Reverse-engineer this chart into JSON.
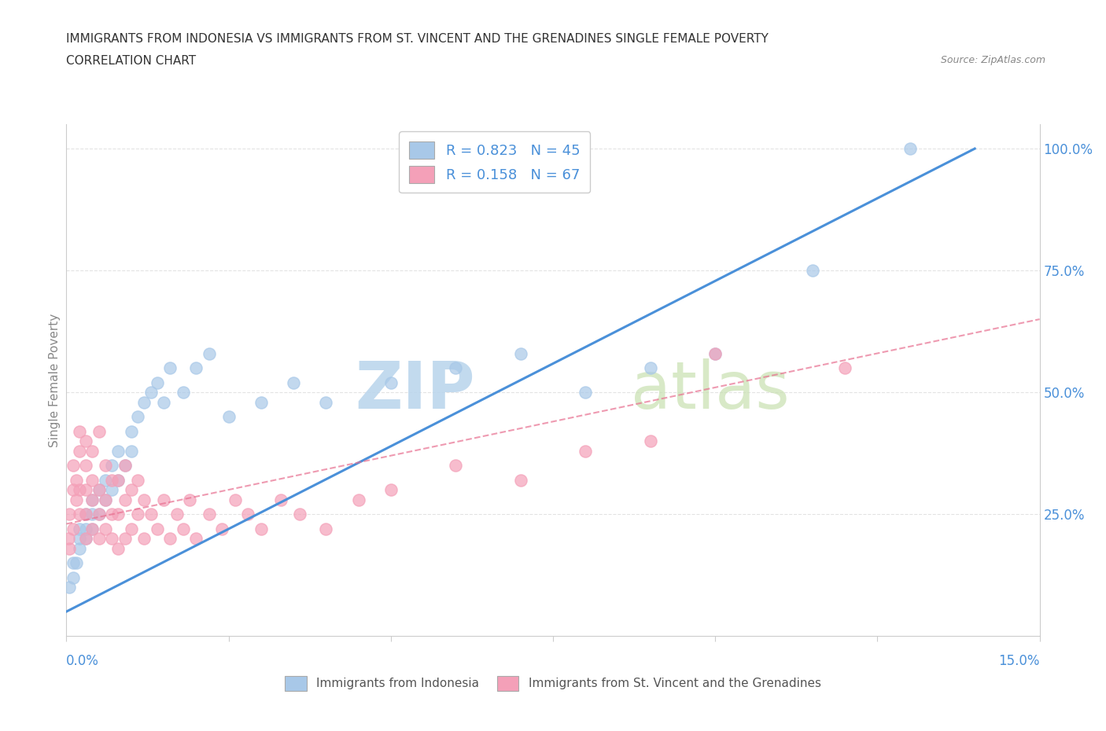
{
  "title_line1": "IMMIGRANTS FROM INDONESIA VS IMMIGRANTS FROM ST. VINCENT AND THE GRENADINES SINGLE FEMALE POVERTY",
  "title_line2": "CORRELATION CHART",
  "source_text": "Source: ZipAtlas.com",
  "ylabel": "Single Female Poverty",
  "xlim": [
    0.0,
    0.15
  ],
  "ylim": [
    0.0,
    1.05
  ],
  "xtick_vals": [
    0.0,
    0.025,
    0.05,
    0.075,
    0.1,
    0.125,
    0.15
  ],
  "ytick_vals": [
    0.25,
    0.5,
    0.75,
    1.0
  ],
  "ytick_labels": [
    "25.0%",
    "50.0%",
    "75.0%",
    "100.0%"
  ],
  "color_blue": "#a8c8e8",
  "color_pink": "#f4a0b8",
  "line_blue": "#4a90d9",
  "line_pink": "#e87090",
  "R_blue": 0.823,
  "N_blue": 45,
  "R_pink": 0.158,
  "N_pink": 67,
  "watermark_zip": "ZIP",
  "watermark_atlas": "atlas",
  "watermark_color": "#c8dff0",
  "legend_label_blue": "Immigrants from Indonesia",
  "legend_label_pink": "Immigrants from St. Vincent and the Grenadines",
  "blue_scatter_x": [
    0.0005,
    0.001,
    0.001,
    0.0015,
    0.002,
    0.002,
    0.002,
    0.003,
    0.003,
    0.003,
    0.004,
    0.004,
    0.004,
    0.005,
    0.005,
    0.006,
    0.006,
    0.007,
    0.007,
    0.008,
    0.008,
    0.009,
    0.01,
    0.01,
    0.011,
    0.012,
    0.013,
    0.014,
    0.015,
    0.016,
    0.018,
    0.02,
    0.022,
    0.025,
    0.03,
    0.035,
    0.04,
    0.05,
    0.06,
    0.07,
    0.08,
    0.09,
    0.1,
    0.115,
    0.13
  ],
  "blue_scatter_y": [
    0.1,
    0.12,
    0.15,
    0.15,
    0.18,
    0.2,
    0.22,
    0.2,
    0.22,
    0.25,
    0.22,
    0.25,
    0.28,
    0.25,
    0.3,
    0.28,
    0.32,
    0.3,
    0.35,
    0.32,
    0.38,
    0.35,
    0.38,
    0.42,
    0.45,
    0.48,
    0.5,
    0.52,
    0.48,
    0.55,
    0.5,
    0.55,
    0.58,
    0.45,
    0.48,
    0.52,
    0.48,
    0.52,
    0.55,
    0.58,
    0.5,
    0.55,
    0.58,
    0.75,
    1.0
  ],
  "pink_scatter_x": [
    0.0003,
    0.0005,
    0.0005,
    0.001,
    0.001,
    0.001,
    0.0015,
    0.0015,
    0.002,
    0.002,
    0.002,
    0.002,
    0.003,
    0.003,
    0.003,
    0.003,
    0.003,
    0.004,
    0.004,
    0.004,
    0.004,
    0.005,
    0.005,
    0.005,
    0.005,
    0.006,
    0.006,
    0.006,
    0.007,
    0.007,
    0.007,
    0.008,
    0.008,
    0.008,
    0.009,
    0.009,
    0.009,
    0.01,
    0.01,
    0.011,
    0.011,
    0.012,
    0.012,
    0.013,
    0.014,
    0.015,
    0.016,
    0.017,
    0.018,
    0.019,
    0.02,
    0.022,
    0.024,
    0.026,
    0.028,
    0.03,
    0.033,
    0.036,
    0.04,
    0.045,
    0.05,
    0.06,
    0.07,
    0.08,
    0.09,
    0.1,
    0.12
  ],
  "pink_scatter_y": [
    0.2,
    0.18,
    0.25,
    0.22,
    0.3,
    0.35,
    0.28,
    0.32,
    0.25,
    0.3,
    0.38,
    0.42,
    0.2,
    0.25,
    0.3,
    0.35,
    0.4,
    0.22,
    0.28,
    0.32,
    0.38,
    0.2,
    0.25,
    0.3,
    0.42,
    0.22,
    0.28,
    0.35,
    0.2,
    0.25,
    0.32,
    0.18,
    0.25,
    0.32,
    0.2,
    0.28,
    0.35,
    0.22,
    0.3,
    0.25,
    0.32,
    0.2,
    0.28,
    0.25,
    0.22,
    0.28,
    0.2,
    0.25,
    0.22,
    0.28,
    0.2,
    0.25,
    0.22,
    0.28,
    0.25,
    0.22,
    0.28,
    0.25,
    0.22,
    0.28,
    0.3,
    0.35,
    0.32,
    0.38,
    0.4,
    0.58,
    0.55
  ],
  "bg_color": "#ffffff",
  "grid_color": "#dddddd",
  "axis_color": "#cccccc",
  "title_color": "#333333",
  "label_color": "#888888",
  "tick_label_color": "#4a90d9"
}
